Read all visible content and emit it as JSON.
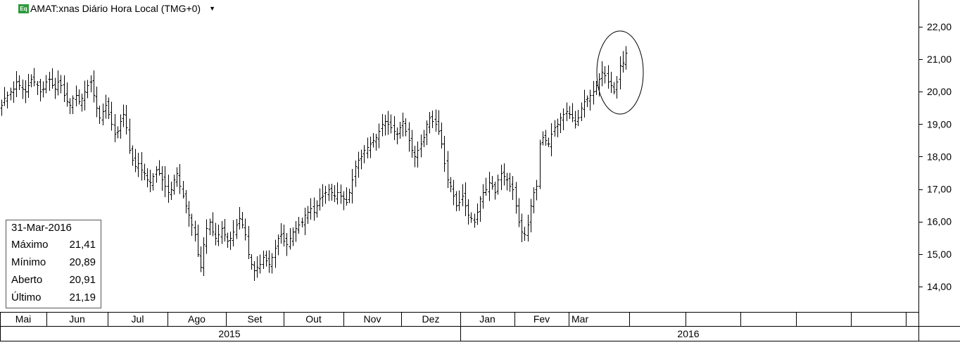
{
  "header": {
    "badge": "Eq",
    "title": "AMAT:xnas Diário Hora Local (TMG+0)",
    "dropdown_icon": "triangle-down-icon"
  },
  "info_box": {
    "date": "31-Mar-2016",
    "rows": [
      {
        "label": "Máximo",
        "value": "21,41"
      },
      {
        "label": "Mínimo",
        "value": "20,89"
      },
      {
        "label": "Aberto",
        "value": "20,91"
      },
      {
        "label": "Último",
        "value": "21,19"
      }
    ]
  },
  "chart_data": {
    "type": "ohlc",
    "title": "AMAT:xnas Diário Hora Local (TMG+0)",
    "ylim": [
      13.2,
      22.9
    ],
    "y_ticks": [
      "14,00",
      "15,00",
      "16,00",
      "17,00",
      "18,00",
      "19,00",
      "20,00",
      "21,00",
      "22,00"
    ],
    "y_tick_values": [
      14,
      15,
      16,
      17,
      18,
      19,
      20,
      21,
      22
    ],
    "months": [
      "Mai",
      "Jun",
      "Jul",
      "Ago",
      "Set",
      "Out",
      "Nov",
      "Dez",
      "Jan",
      "Fev",
      "Mar"
    ],
    "years": [
      "2015",
      "2016"
    ],
    "grid": false,
    "annotation": "circle around late-March 2016 highs",
    "closes": [
      19.6,
      19.8,
      19.9,
      20.0,
      20.1,
      20.3,
      20.2,
      20.1,
      20.0,
      20.2,
      20.4,
      20.3,
      20.2,
      20.0,
      20.1,
      20.3,
      20.4,
      20.2,
      20.1,
      20.3,
      20.2,
      19.9,
      19.7,
      19.6,
      19.8,
      19.9,
      19.7,
      19.8,
      20.0,
      20.2,
      20.3,
      19.9,
      19.5,
      19.2,
      19.4,
      19.6,
      19.3,
      19.0,
      18.7,
      18.8,
      19.1,
      19.3,
      18.9,
      18.2,
      17.9,
      17.7,
      17.8,
      17.6,
      17.5,
      17.3,
      17.2,
      17.4,
      17.6,
      17.5,
      17.3,
      17.1,
      16.9,
      17.0,
      17.3,
      17.5,
      17.1,
      16.8,
      16.5,
      16.2,
      15.9,
      15.6,
      15.0,
      14.6,
      15.3,
      15.8,
      16.0,
      15.7,
      15.5,
      15.6,
      15.8,
      15.6,
      15.4,
      15.5,
      15.7,
      15.9,
      16.1,
      15.9,
      15.6,
      15.0,
      14.7,
      14.5,
      14.6,
      14.7,
      14.9,
      14.8,
      14.7,
      14.9,
      15.2,
      15.5,
      15.6,
      15.4,
      15.3,
      15.5,
      15.7,
      15.8,
      15.9,
      16.0,
      16.2,
      16.3,
      16.4,
      16.3,
      16.5,
      16.7,
      16.8,
      16.9,
      17.0,
      16.9,
      16.8,
      16.9,
      16.8,
      16.7,
      16.6,
      16.9,
      17.3,
      17.7,
      17.9,
      18.0,
      18.2,
      18.3,
      18.4,
      18.5,
      18.6,
      18.8,
      19.0,
      19.1,
      19.0,
      18.9,
      18.8,
      18.7,
      18.9,
      19.1,
      18.8,
      18.5,
      18.2,
      18.0,
      18.2,
      18.4,
      18.6,
      19.0,
      19.2,
      19.1,
      19.0,
      18.8,
      18.4,
      17.8,
      17.3,
      17.1,
      16.8,
      16.5,
      16.6,
      16.8,
      16.5,
      16.2,
      16.1,
      16.0,
      16.3,
      16.7,
      16.9,
      17.0,
      17.2,
      17.1,
      16.9,
      17.3,
      17.5,
      17.4,
      17.3,
      17.1,
      17.0,
      16.5,
      16.0,
      15.7,
      15.6,
      15.9,
      16.5,
      16.9,
      17.1,
      18.4,
      18.6,
      18.5,
      18.4,
      18.7,
      18.9,
      19.0,
      19.2,
      19.3,
      19.4,
      19.3,
      19.2,
      19.0,
      19.2,
      19.5,
      19.7,
      19.8,
      19.9,
      20.0,
      20.2,
      20.4,
      20.6,
      20.5,
      20.3,
      20.2,
      20.0,
      20.3,
      20.8,
      20.9,
      21.2
    ]
  }
}
